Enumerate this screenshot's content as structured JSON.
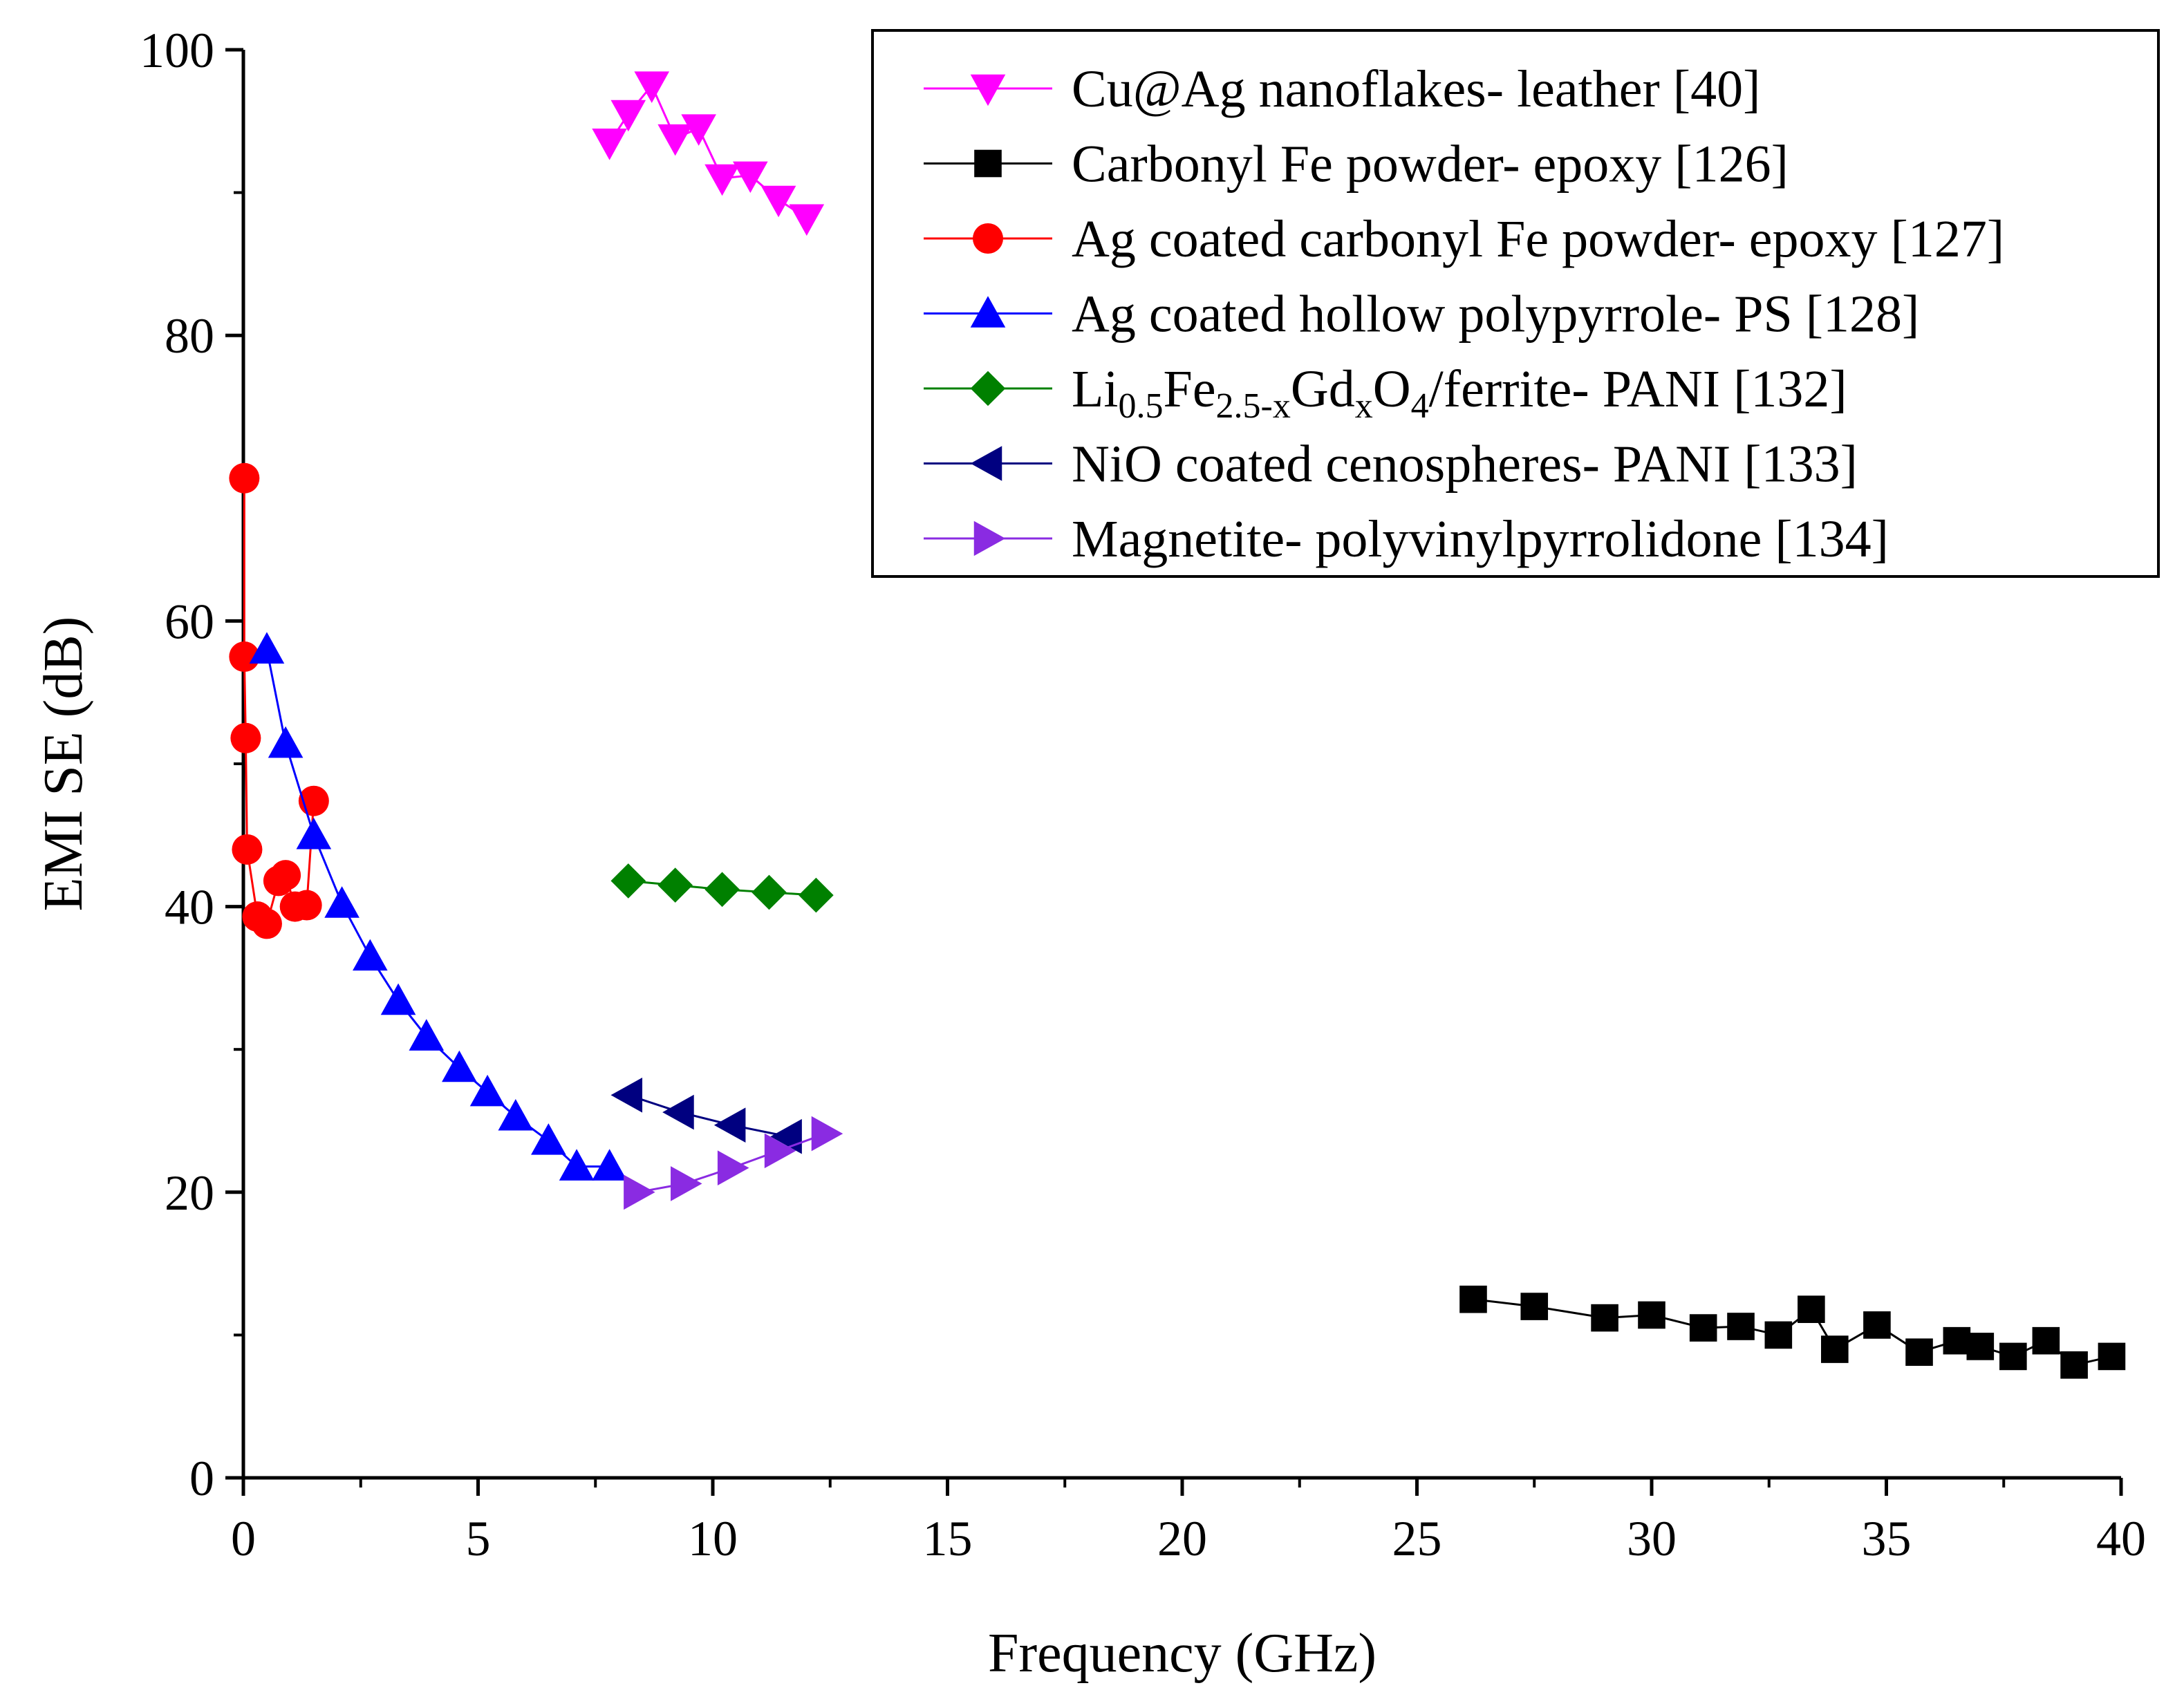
{
  "chart_data": {
    "type": "line",
    "title": "",
    "xlabel": "Frequency (GHz)",
    "ylabel": "EMI SE (dB)",
    "xlim": [
      0,
      40
    ],
    "ylim": [
      0,
      100
    ],
    "xticks": [
      0,
      5,
      10,
      15,
      20,
      25,
      30,
      35,
      40
    ],
    "yticks": [
      0,
      20,
      40,
      60,
      80,
      100
    ],
    "x_tick_labels": [
      "0",
      "5",
      "10",
      "15",
      "20",
      "25",
      "30",
      "35",
      "40"
    ],
    "y_tick_labels": [
      "0",
      "20",
      "40",
      "60",
      "80",
      "100"
    ],
    "grid": false,
    "legend_position": "top-right",
    "series": [
      {
        "name": "Cu@Ag nanoflakes- leather [40]",
        "label_parts": [
          {
            "t": "Cu@Ag nanoflakes- leather [40]"
          }
        ],
        "color": "#ff00ff",
        "marker": "triangle-down",
        "x": [
          7.8,
          8.2,
          8.7,
          9.2,
          9.7,
          10.2,
          10.8,
          11.4,
          12.0
        ],
        "y": [
          93.5,
          95.5,
          97.5,
          93.8,
          94.5,
          91.0,
          91.2,
          89.5,
          88.2
        ]
      },
      {
        "name": "Carbonyl Fe powder- epoxy [126]",
        "label_parts": [
          {
            "t": "Carbonyl Fe powder- epoxy [126]"
          }
        ],
        "color": "#000000",
        "marker": "square",
        "x": [
          26.2,
          27.5,
          29.0,
          30.0,
          31.1,
          31.9,
          32.7,
          33.4,
          33.9,
          34.8,
          35.7,
          36.5,
          37.0,
          37.7,
          38.4,
          39.0,
          39.8
        ],
        "y": [
          12.5,
          12.0,
          11.2,
          11.4,
          10.5,
          10.6,
          10.0,
          11.8,
          9.0,
          10.7,
          8.8,
          9.6,
          9.2,
          8.5,
          9.6,
          7.9,
          8.5
        ]
      },
      {
        "name": "Ag coated carbonyl Fe powder- epoxy [127]",
        "label_parts": [
          {
            "t": "Ag coated carbonyl Fe powder- epoxy [127]"
          }
        ],
        "color": "#ff0000",
        "marker": "circle",
        "x": [
          0.02,
          0.02,
          0.05,
          0.08,
          0.3,
          0.5,
          0.75,
          0.9,
          1.1,
          1.35,
          1.5
        ],
        "y": [
          70.0,
          57.5,
          51.8,
          44.0,
          39.3,
          38.8,
          41.8,
          42.2,
          40.0,
          40.1,
          47.4
        ]
      },
      {
        "name": "Ag coated hollow polypyrrole- PS [128]",
        "label_parts": [
          {
            "t": "Ag coated hollow polypyrrole- PS [128]"
          }
        ],
        "color": "#0000ff",
        "marker": "triangle-up",
        "x": [
          0.5,
          0.9,
          1.5,
          2.1,
          2.7,
          3.3,
          3.9,
          4.6,
          5.2,
          5.8,
          6.5,
          7.1,
          7.8
        ],
        "y": [
          58.0,
          51.4,
          45.0,
          40.2,
          36.5,
          33.4,
          30.9,
          28.7,
          27.0,
          25.3,
          23.6,
          21.8,
          21.8
        ]
      },
      {
        "name": "Li0.5Fe2.5-xGdxO4/ferrite- PANI [132]",
        "label_parts": [
          {
            "t": "Li"
          },
          {
            "t": "0.5",
            "sub": true
          },
          {
            "t": "Fe"
          },
          {
            "t": "2.5-x",
            "sub": true
          },
          {
            "t": "Gd"
          },
          {
            "t": "x",
            "sub": true
          },
          {
            "t": "O"
          },
          {
            "t": "4",
            "sub": true
          },
          {
            "t": "/ferrite- PANI [132]"
          }
        ],
        "color": "#008000",
        "marker": "diamond",
        "x": [
          8.2,
          9.2,
          10.2,
          11.2,
          12.2
        ],
        "y": [
          41.8,
          41.5,
          41.2,
          41.0,
          40.8
        ]
      },
      {
        "name": "NiO coated cenospheres- PANI [133]",
        "label_parts": [
          {
            "t": "NiO coated cenospheres- PANI [133]"
          }
        ],
        "color": "#000080",
        "marker": "triangle-left",
        "x": [
          8.2,
          9.3,
          10.4,
          11.6
        ],
        "y": [
          26.8,
          25.6,
          24.7,
          23.9
        ]
      },
      {
        "name": "Magnetite- polyvinylpyrrolidone [134]",
        "label_parts": [
          {
            "t": "Magnetite- polyvinylpyrrolidone [134]"
          }
        ],
        "color": "#8a2be2",
        "marker": "triangle-right",
        "x": [
          8.4,
          9.4,
          10.4,
          11.4,
          12.4
        ],
        "y": [
          20.0,
          20.6,
          21.7,
          22.9,
          24.1
        ]
      }
    ]
  }
}
